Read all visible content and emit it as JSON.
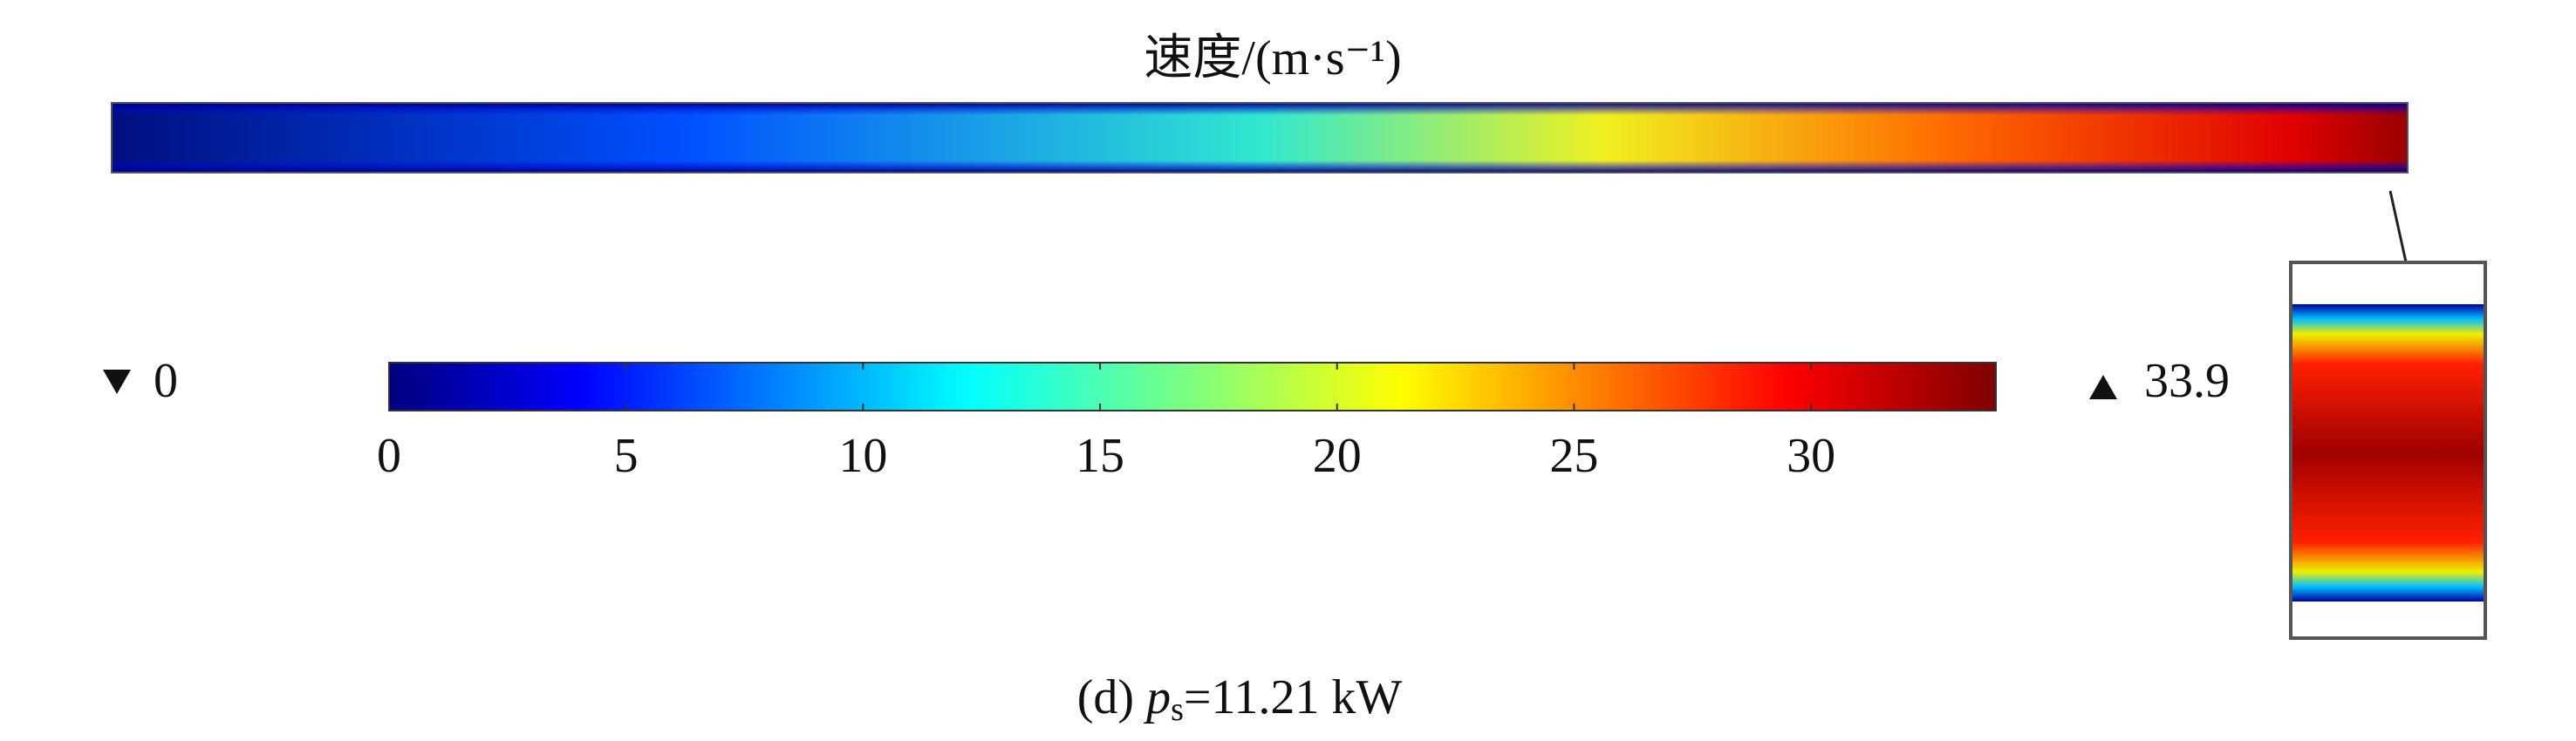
{
  "title": "速度/(m·s⁻¹)",
  "colorbar": {
    "min": 0,
    "max": 33.9,
    "ticks": [
      0,
      5,
      10,
      15,
      20,
      25,
      30
    ]
  },
  "caption": {
    "prefix": "(d)",
    "variable": "p",
    "subscript": "s",
    "value": "=11.21 kW"
  }
}
